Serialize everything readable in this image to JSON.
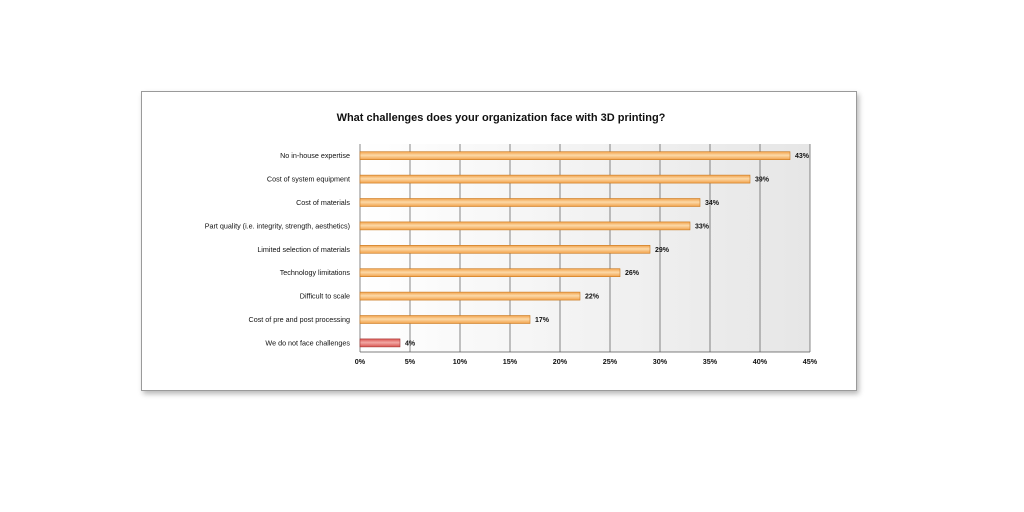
{
  "chart_data": {
    "type": "bar",
    "orientation": "horizontal",
    "title": "What challenges does your organization face with 3D printing?",
    "categories": [
      "No in-house expertise",
      "Cost of system equipment",
      "Cost of materials",
      "Part quality (i.e. integrity, strength, aesthetics)",
      "Limited selection of materials",
      "Technology limitations",
      "Difficult to scale",
      "Cost of pre and post processing",
      "We do not face challenges"
    ],
    "values": [
      43,
      39,
      34,
      33,
      29,
      26,
      22,
      17,
      4
    ],
    "data_labels": [
      "43%",
      "39%",
      "34%",
      "33%",
      "29%",
      "26%",
      "22%",
      "17%",
      "4%"
    ],
    "xlim": [
      0,
      45
    ],
    "x_ticks": [
      "0%",
      "5%",
      "10%",
      "15%",
      "20%",
      "25%",
      "30%",
      "35%",
      "40%",
      "45%"
    ],
    "grid": true,
    "colors": {
      "bar": "#f2a24a",
      "bar_highlight": "#fcd9a8",
      "bar_stroke": "#c97a22",
      "bar_alt": "#d9534f",
      "bar_alt_highlight": "#f2a8a4",
      "bar_alt_stroke": "#a33532",
      "grid": "#555555",
      "plot_bg_start": "#ffffff",
      "plot_bg_end": "#e6e6e6"
    }
  }
}
